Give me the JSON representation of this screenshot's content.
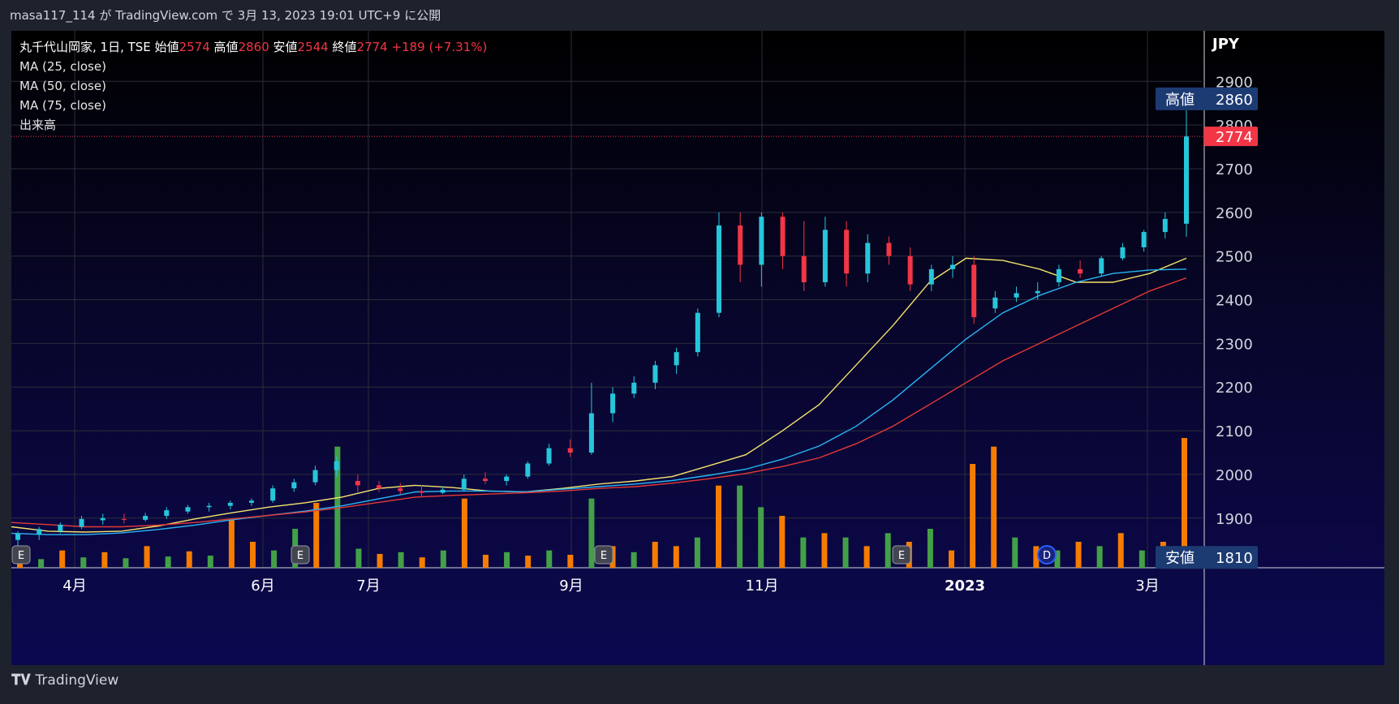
{
  "header": {
    "text": "masa117_114 が TradingView.com で 3月 13, 2023 19:01 UTC+9 に公開"
  },
  "legend": {
    "symbol": "丸千代山岡家, 1日, TSE",
    "open_label": "始値",
    "open": "2574",
    "high_label": "高値",
    "high": "2860",
    "low_label": "安値",
    "low": "2544",
    "close_label": "終値",
    "close": "2774",
    "change": "+189 (+7.31%)",
    "ma1": "MA (25, close)",
    "ma2": "MA (50, close)",
    "ma3": "MA (75, close)",
    "volume": "出来高"
  },
  "footer": {
    "brand": "TradingView",
    "logo_icon": "tradingview-logo-icon"
  },
  "colors": {
    "up": "#26c6da",
    "down": "#f23645",
    "ma25": "#f5e36b",
    "ma50": "#29b6f6",
    "ma75": "#e53935",
    "vol_orange": "#f57c00",
    "vol_green": "#43a047",
    "label_bg": "#1d3b73",
    "last_bg": "#f23645"
  },
  "chart_data": {
    "type": "candlestick",
    "currency": "JPY",
    "yticks": [
      1900,
      2000,
      2100,
      2200,
      2300,
      2400,
      2500,
      2600,
      2700,
      2800,
      2900
    ],
    "ylim": [
      1790,
      2960
    ],
    "xlabels": [
      "4月",
      "6月",
      "7月",
      "9月",
      "11月",
      "2023",
      "3月"
    ],
    "high_marker": {
      "label": "高値",
      "value": 2860
    },
    "low_marker": {
      "label": "安値",
      "value": 1810
    },
    "last_price": 2774,
    "events": [
      "E",
      "E",
      "E",
      "E",
      "D"
    ],
    "ma_series": [
      {
        "name": "MA (25, close)",
        "values": [
          1880,
          1870,
          1868,
          1870,
          1882,
          1898,
          1912,
          1925,
          1935,
          1948,
          1968,
          1975,
          1970,
          1962,
          1960,
          1968,
          1978,
          1985,
          1995,
          2020,
          2045,
          2100,
          2160,
          2250,
          2340,
          2440,
          2495,
          2490,
          2470,
          2440,
          2440,
          2460,
          2495
        ]
      },
      {
        "name": "MA (50, close)",
        "values": [
          1865,
          1862,
          1862,
          1866,
          1874,
          1884,
          1896,
          1906,
          1916,
          1928,
          1944,
          1960,
          1962,
          1962,
          1960,
          1966,
          1972,
          1978,
          1986,
          1998,
          2012,
          2035,
          2065,
          2110,
          2170,
          2240,
          2310,
          2370,
          2410,
          2440,
          2460,
          2468,
          2470
        ]
      },
      {
        "name": "MA (75, close)",
        "values": [
          1890,
          1885,
          1880,
          1880,
          1884,
          1890,
          1898,
          1906,
          1914,
          1924,
          1936,
          1948,
          1952,
          1955,
          1958,
          1962,
          1968,
          1972,
          1980,
          1990,
          2002,
          2018,
          2038,
          2070,
          2110,
          2160,
          2210,
          2260,
          2300,
          2340,
          2380,
          2420,
          2450
        ]
      }
    ],
    "candles": [
      {
        "o": 1850,
        "h": 1870,
        "l": 1835,
        "c": 1865
      },
      {
        "o": 1862,
        "h": 1880,
        "l": 1850,
        "c": 1875
      },
      {
        "o": 1870,
        "h": 1890,
        "l": 1865,
        "c": 1885
      },
      {
        "o": 1880,
        "h": 1905,
        "l": 1875,
        "c": 1898
      },
      {
        "o": 1895,
        "h": 1910,
        "l": 1885,
        "c": 1900
      },
      {
        "o": 1898,
        "h": 1910,
        "l": 1888,
        "c": 1896
      },
      {
        "o": 1896,
        "h": 1912,
        "l": 1892,
        "c": 1905
      },
      {
        "o": 1905,
        "h": 1925,
        "l": 1898,
        "c": 1918
      },
      {
        "o": 1915,
        "h": 1930,
        "l": 1910,
        "c": 1925
      },
      {
        "o": 1925,
        "h": 1935,
        "l": 1915,
        "c": 1928
      },
      {
        "o": 1928,
        "h": 1940,
        "l": 1920,
        "c": 1935
      },
      {
        "o": 1935,
        "h": 1945,
        "l": 1928,
        "c": 1940
      },
      {
        "o": 1940,
        "h": 1975,
        "l": 1935,
        "c": 1968
      },
      {
        "o": 1968,
        "h": 1990,
        "l": 1960,
        "c": 1982
      },
      {
        "o": 1982,
        "h": 2020,
        "l": 1975,
        "c": 2010
      },
      {
        "o": 2010,
        "h": 2040,
        "l": 1995,
        "c": 2030
      },
      {
        "o": 1985,
        "h": 2000,
        "l": 1960,
        "c": 1975
      },
      {
        "o": 1975,
        "h": 1985,
        "l": 1960,
        "c": 1968
      },
      {
        "o": 1968,
        "h": 1980,
        "l": 1955,
        "c": 1962
      },
      {
        "o": 1962,
        "h": 1975,
        "l": 1950,
        "c": 1958
      },
      {
        "o": 1958,
        "h": 1972,
        "l": 1955,
        "c": 1965
      },
      {
        "o": 1965,
        "h": 2000,
        "l": 1960,
        "c": 1990
      },
      {
        "o": 1990,
        "h": 2005,
        "l": 1978,
        "c": 1985
      },
      {
        "o": 1985,
        "h": 2000,
        "l": 1975,
        "c": 1995
      },
      {
        "o": 1995,
        "h": 2030,
        "l": 1990,
        "c": 2025
      },
      {
        "o": 2025,
        "h": 2070,
        "l": 2020,
        "c": 2060
      },
      {
        "o": 2060,
        "h": 2080,
        "l": 2040,
        "c": 2050
      },
      {
        "o": 2050,
        "h": 2210,
        "l": 2045,
        "c": 2140
      },
      {
        "o": 2140,
        "h": 2200,
        "l": 2120,
        "c": 2185
      },
      {
        "o": 2185,
        "h": 2225,
        "l": 2175,
        "c": 2210
      },
      {
        "o": 2210,
        "h": 2260,
        "l": 2195,
        "c": 2250
      },
      {
        "o": 2250,
        "h": 2290,
        "l": 2230,
        "c": 2280
      },
      {
        "o": 2280,
        "h": 2380,
        "l": 2270,
        "c": 2370
      },
      {
        "o": 2370,
        "h": 2600,
        "l": 2360,
        "c": 2570
      },
      {
        "o": 2570,
        "h": 2600,
        "l": 2440,
        "c": 2480
      },
      {
        "o": 2480,
        "h": 2600,
        "l": 2430,
        "c": 2590
      },
      {
        "o": 2590,
        "h": 2600,
        "l": 2470,
        "c": 2500
      },
      {
        "o": 2500,
        "h": 2580,
        "l": 2420,
        "c": 2440
      },
      {
        "o": 2440,
        "h": 2590,
        "l": 2430,
        "c": 2560
      },
      {
        "o": 2560,
        "h": 2580,
        "l": 2430,
        "c": 2460
      },
      {
        "o": 2460,
        "h": 2550,
        "l": 2440,
        "c": 2530
      },
      {
        "o": 2530,
        "h": 2545,
        "l": 2480,
        "c": 2500
      },
      {
        "o": 2500,
        "h": 2520,
        "l": 2420,
        "c": 2435
      },
      {
        "o": 2435,
        "h": 2480,
        "l": 2420,
        "c": 2470
      },
      {
        "o": 2470,
        "h": 2500,
        "l": 2450,
        "c": 2480
      },
      {
        "o": 2480,
        "h": 2500,
        "l": 2345,
        "c": 2360
      },
      {
        "o": 2380,
        "h": 2420,
        "l": 2370,
        "c": 2405
      },
      {
        "o": 2405,
        "h": 2430,
        "l": 2395,
        "c": 2415
      },
      {
        "o": 2415,
        "h": 2440,
        "l": 2400,
        "c": 2420
      },
      {
        "o": 2440,
        "h": 2480,
        "l": 2430,
        "c": 2470
      },
      {
        "o": 2470,
        "h": 2490,
        "l": 2450,
        "c": 2460
      },
      {
        "o": 2460,
        "h": 2500,
        "l": 2455,
        "c": 2495
      },
      {
        "o": 2495,
        "h": 2530,
        "l": 2490,
        "c": 2520
      },
      {
        "o": 2520,
        "h": 2560,
        "l": 2510,
        "c": 2555
      },
      {
        "o": 2555,
        "h": 2600,
        "l": 2540,
        "c": 2585
      },
      {
        "o": 2574,
        "h": 2860,
        "l": 2544,
        "c": 2774
      }
    ],
    "volume": [
      {
        "v": 1.5,
        "up": false
      },
      {
        "v": 1.0,
        "up": true
      },
      {
        "v": 2.0,
        "up": false
      },
      {
        "v": 1.2,
        "up": true
      },
      {
        "v": 1.8,
        "up": false
      },
      {
        "v": 1.1,
        "up": true
      },
      {
        "v": 2.5,
        "up": false
      },
      {
        "v": 1.3,
        "up": true
      },
      {
        "v": 1.9,
        "up": false
      },
      {
        "v": 1.4,
        "up": true
      },
      {
        "v": 5.5,
        "up": false
      },
      {
        "v": 3.0,
        "up": false
      },
      {
        "v": 2.0,
        "up": true
      },
      {
        "v": 4.5,
        "up": true
      },
      {
        "v": 7.5,
        "up": false
      },
      {
        "v": 14.0,
        "up": true
      },
      {
        "v": 2.2,
        "up": true
      },
      {
        "v": 1.6,
        "up": false
      },
      {
        "v": 1.8,
        "up": true
      },
      {
        "v": 1.2,
        "up": false
      },
      {
        "v": 2.0,
        "up": true
      },
      {
        "v": 8.0,
        "up": false
      },
      {
        "v": 1.5,
        "up": false
      },
      {
        "v": 1.8,
        "up": true
      },
      {
        "v": 1.4,
        "up": false
      },
      {
        "v": 2.0,
        "up": true
      },
      {
        "v": 1.5,
        "up": false
      },
      {
        "v": 8.0,
        "up": true
      },
      {
        "v": 2.5,
        "up": false
      },
      {
        "v": 1.8,
        "up": true
      },
      {
        "v": 3.0,
        "up": false
      },
      {
        "v": 2.5,
        "up": false
      },
      {
        "v": 3.5,
        "up": true
      },
      {
        "v": 9.5,
        "up": false
      },
      {
        "v": 9.5,
        "up": true
      },
      {
        "v": 7.0,
        "up": true
      },
      {
        "v": 6.0,
        "up": false
      },
      {
        "v": 3.5,
        "up": true
      },
      {
        "v": 4.0,
        "up": false
      },
      {
        "v": 3.5,
        "up": true
      },
      {
        "v": 2.5,
        "up": false
      },
      {
        "v": 4.0,
        "up": true
      },
      {
        "v": 3.0,
        "up": false
      },
      {
        "v": 4.5,
        "up": true
      },
      {
        "v": 2.0,
        "up": false
      },
      {
        "v": 12.0,
        "up": false
      },
      {
        "v": 14.0,
        "up": false
      },
      {
        "v": 3.5,
        "up": true
      },
      {
        "v": 2.5,
        "up": false
      },
      {
        "v": 2.0,
        "up": true
      },
      {
        "v": 3.0,
        "up": false
      },
      {
        "v": 2.5,
        "up": true
      },
      {
        "v": 4.0,
        "up": false
      },
      {
        "v": 2.0,
        "up": true
      },
      {
        "v": 3.0,
        "up": false
      },
      {
        "v": 15.0,
        "up": false
      }
    ]
  }
}
